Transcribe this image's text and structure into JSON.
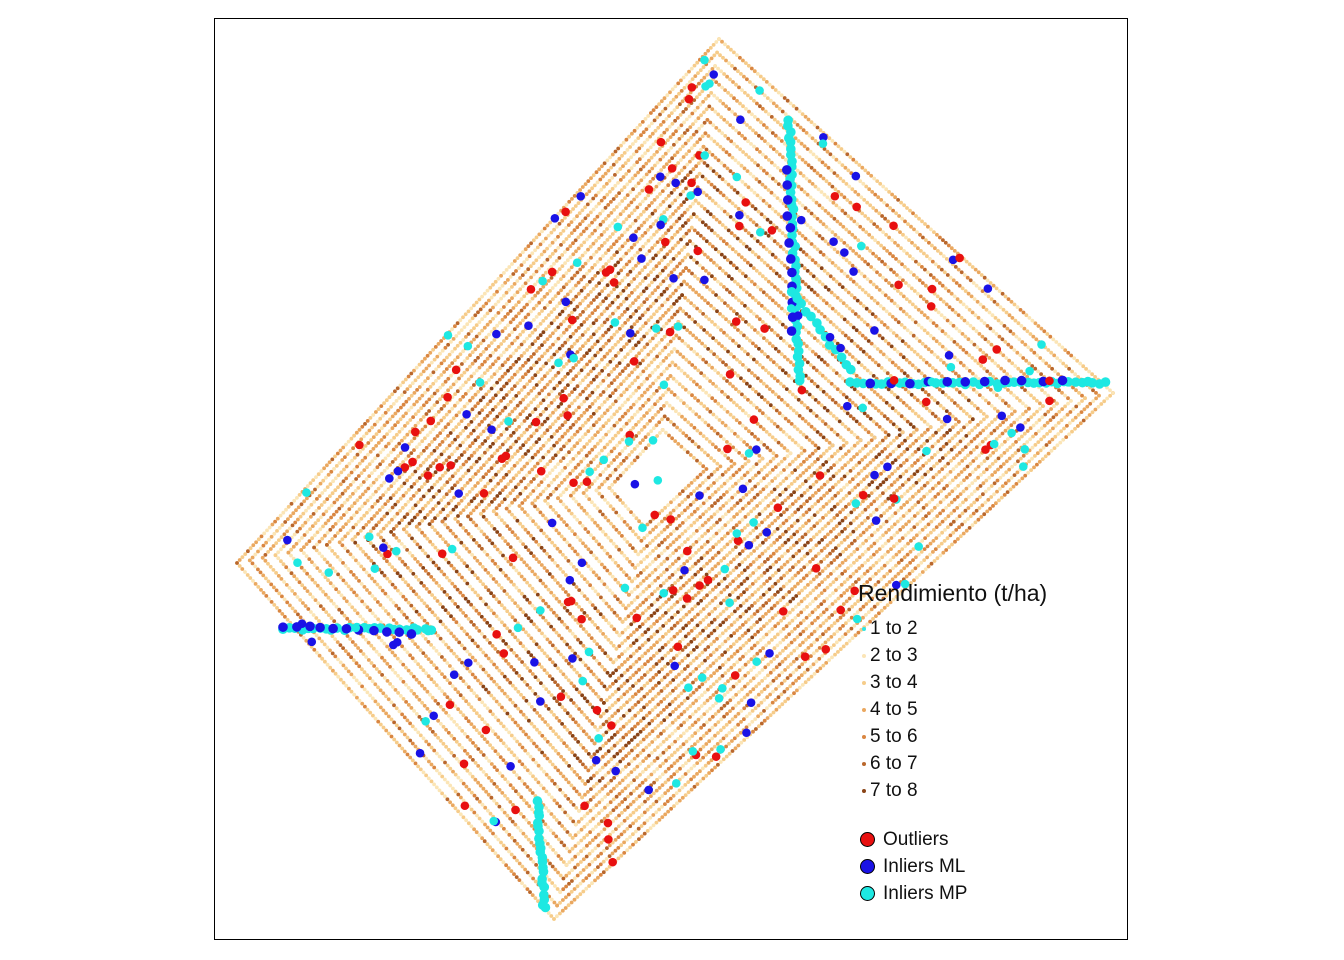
{
  "legend": {
    "title": "Rendimiento (t/ha)",
    "yield_classes": [
      {
        "label": "1 to 2",
        "color": "#2ee6e6"
      },
      {
        "label": "2 to 3",
        "color": "#fbe5b6"
      },
      {
        "label": "3 to 4",
        "color": "#f6cc8a"
      },
      {
        "label": "4 to 5",
        "color": "#eaa860"
      },
      {
        "label": "5 to 6",
        "color": "#d98641"
      },
      {
        "label": "6 to 7",
        "color": "#b9672c"
      },
      {
        "label": "7 to 8",
        "color": "#8a4417"
      }
    ],
    "point_classes": [
      {
        "label": "Outliers",
        "color": "#e81010"
      },
      {
        "label": "Inliers ML",
        "color": "#1a12e6"
      },
      {
        "label": "Inliers MP",
        "color": "#1ee8e2"
      }
    ]
  }
}
